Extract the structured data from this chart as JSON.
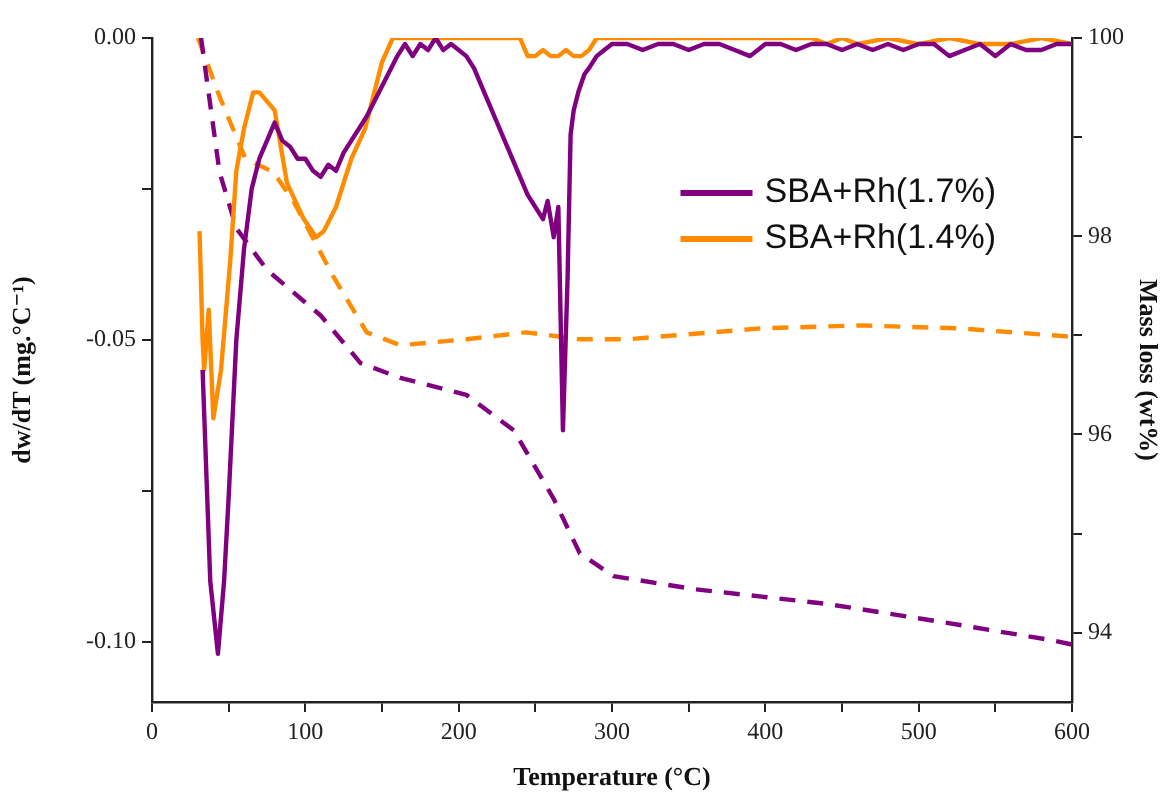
{
  "chart_data": {
    "type": "line",
    "xlabel": "Temperature (°C)",
    "ylabel": "dw/dT (mg.°C⁻¹)",
    "y2label": "Mass loss (wt%)",
    "xlim": [
      0,
      600
    ],
    "xticks": [
      0,
      {
        "value": 50,
        "label": null
      },
      100,
      {
        "value": 150,
        "label": null
      },
      200,
      {
        "value": 250,
        "label": null
      },
      300,
      {
        "value": 350,
        "label": null
      },
      400,
      {
        "value": 450,
        "label": null
      },
      500,
      {
        "value": 550,
        "label": null
      },
      600
    ],
    "ylim": [
      -0.11,
      0
    ],
    "yticks": [
      {
        "value": -0.1,
        "label": "-0.10"
      },
      {
        "value": -0.075,
        "label": null
      },
      {
        "value": -0.05,
        "label": "-0.05"
      },
      {
        "value": -0.025,
        "label": null
      },
      {
        "value": 0,
        "label": "0.00"
      }
    ],
    "y2lim": [
      93.3,
      100
    ],
    "y2ticks": [
      94,
      {
        "value": 95,
        "label": null
      },
      96,
      {
        "value": 97,
        "label": null
      },
      98,
      {
        "value": 99,
        "label": null
      },
      100
    ],
    "grid": false,
    "legend": "top right",
    "line_style": "solid",
    "marker": "none",
    "series": [
      {
        "name": "SBA+Rh(1.7%)",
        "color": "#800080",
        "x": [
          33,
          38,
          43,
          47,
          50,
          55,
          60,
          65,
          70,
          75,
          80,
          85,
          90,
          95,
          100,
          105,
          110,
          115,
          120,
          125,
          130,
          140,
          150,
          160,
          165,
          170,
          175,
          180,
          185,
          190,
          195,
          200,
          205,
          210,
          215,
          220,
          225,
          230,
          240,
          245,
          250,
          255,
          258,
          262,
          265,
          268,
          271,
          273,
          275,
          278,
          282,
          285,
          290,
          295,
          300,
          310,
          320,
          330,
          340,
          350,
          360,
          370,
          380,
          390,
          400,
          410,
          420,
          430,
          440,
          450,
          460,
          470,
          480,
          490,
          500,
          510,
          520,
          530,
          540,
          550,
          560,
          570,
          580,
          590,
          600
        ],
        "values": [
          -0.055,
          -0.09,
          -0.102,
          -0.09,
          -0.076,
          -0.05,
          -0.035,
          -0.025,
          -0.02,
          -0.017,
          -0.014,
          -0.017,
          -0.018,
          -0.02,
          -0.02,
          -0.022,
          -0.023,
          -0.021,
          -0.022,
          -0.019,
          -0.017,
          -0.013,
          -0.008,
          -0.003,
          -0.001,
          -0.003,
          -0.001,
          -0.002,
          0,
          -0.002,
          -0.001,
          -0.002,
          -0.003,
          -0.005,
          -0.008,
          -0.011,
          -0.014,
          -0.017,
          -0.023,
          -0.026,
          -0.028,
          -0.03,
          -0.027,
          -0.033,
          -0.028,
          -0.065,
          -0.04,
          -0.016,
          -0.012,
          -0.009,
          -0.006,
          -0.005,
          -0.003,
          -0.002,
          -0.001,
          -0.001,
          -0.002,
          -0.001,
          -0.001,
          -0.002,
          -0.001,
          -0.001,
          -0.002,
          -0.003,
          -0.001,
          -0.001,
          -0.002,
          -0.001,
          -0.001,
          -0.002,
          -0.001,
          -0.002,
          -0.001,
          -0.002,
          -0.001,
          -0.001,
          -0.003,
          -0.002,
          -0.001,
          -0.003,
          -0.001,
          -0.002,
          -0.002,
          -0.001,
          -0.001
        ]
      },
      {
        "name": "SBA+Rh(1.4%)",
        "color": "#ff8c00",
        "x": [
          31,
          33,
          34,
          37,
          40,
          45,
          51,
          55,
          60,
          66,
          70,
          80,
          88,
          99,
          107,
          112,
          120,
          130,
          139,
          150,
          157,
          170,
          200,
          240,
          245,
          250,
          255,
          260,
          265,
          270,
          275,
          280,
          285,
          290,
          300,
          350,
          400,
          430,
          440,
          450,
          460,
          480,
          500,
          520,
          540,
          560,
          580,
          600
        ],
        "values": [
          -0.032,
          -0.05,
          -0.055,
          -0.045,
          -0.063,
          -0.055,
          -0.037,
          -0.022,
          -0.015,
          -0.009,
          -0.009,
          -0.012,
          -0.024,
          -0.03,
          -0.033,
          -0.032,
          -0.028,
          -0.02,
          -0.015,
          -0.004,
          0,
          0,
          0,
          0,
          -0.003,
          -0.003,
          -0.002,
          -0.003,
          -0.003,
          -0.002,
          -0.003,
          -0.003,
          -0.002,
          0,
          0,
          0,
          0,
          0,
          -0.001,
          0,
          -0.001,
          0,
          -0.001,
          0,
          -0.001,
          -0.001,
          0,
          -0.001
        ]
      },
      {
        "color": "#800080",
        "axis": "y2",
        "line_style": "dashed",
        "x": [
          32,
          44,
          55,
          75,
          110,
          136,
          162,
          205,
          236,
          262,
          279,
          301,
          353,
          440,
          510,
          588,
          600
        ],
        "values": [
          100,
          98.65,
          98.08,
          97.66,
          97.2,
          96.72,
          96.57,
          96.4,
          96.04,
          95.35,
          94.8,
          94.57,
          94.44,
          94.29,
          94.12,
          93.92,
          93.88
        ]
      },
      {
        "color": "#ff8c00",
        "axis": "y2",
        "line_style": "dashed",
        "x": [
          30,
          44,
          61,
          79,
          92,
          118,
          140,
          162,
          205,
          244,
          279,
          310,
          397,
          462,
          527,
          596,
          600
        ],
        "values": [
          100,
          99.41,
          98.78,
          98.65,
          98.36,
          97.6,
          97.03,
          96.9,
          96.96,
          97.03,
          96.96,
          96.96,
          97.07,
          97.1,
          97.07,
          96.99,
          96.98
        ]
      }
    ]
  }
}
